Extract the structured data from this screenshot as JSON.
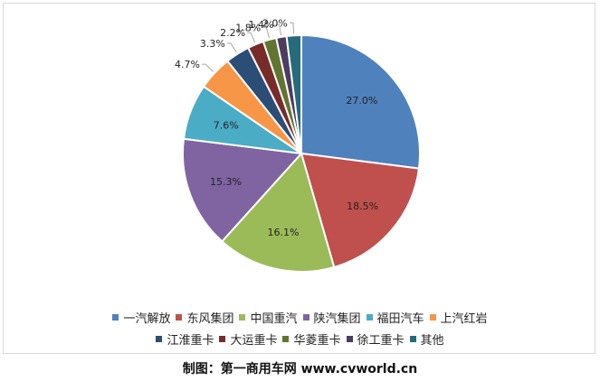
{
  "chart_data": {
    "type": "pie",
    "title": "",
    "categories": [
      "一汽解放",
      "东风集团",
      "中国重汽",
      "陕汽集团",
      "福田汽车",
      "上汽红岩",
      "江淮重卡",
      "大运重卡",
      "华菱重卡",
      "徐工重卡",
      "其他"
    ],
    "values": [
      27.0,
      18.5,
      16.1,
      15.3,
      7.6,
      4.7,
      3.3,
      2.2,
      1.8,
      1.4,
      2.0
    ],
    "value_labels": [
      "27.0%",
      "18.5%",
      "16.1%",
      "15.3%",
      "7.6%",
      "4.7%",
      "3.3%",
      "2.2%",
      "1.8%",
      "1.4%",
      "2.0%"
    ],
    "colors": [
      "#4f81bd",
      "#c0504d",
      "#9bbb59",
      "#8064a2",
      "#4bacc6",
      "#f79646",
      "#2c4d75",
      "#772c2a",
      "#5f7530",
      "#4d3b62",
      "#276a7c"
    ],
    "legend_position": "bottom"
  },
  "footer": {
    "credit": "制图：第一商用车网 www.cvworld.cn"
  }
}
